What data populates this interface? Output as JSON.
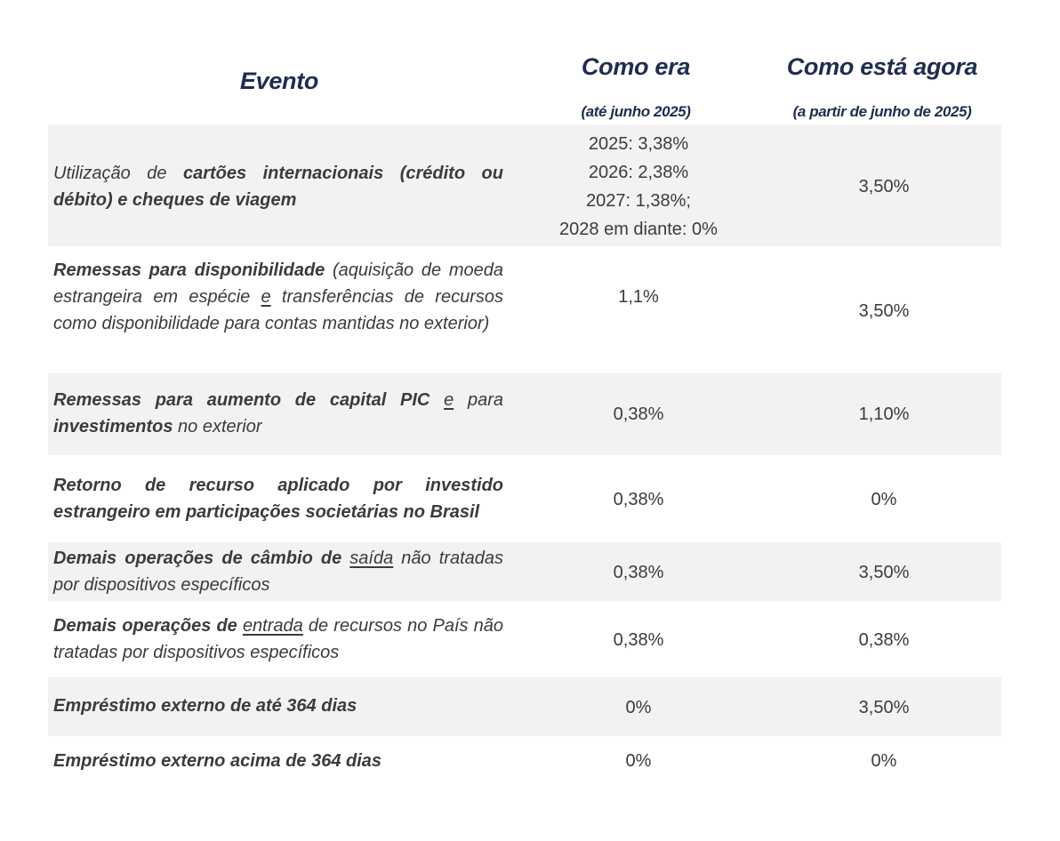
{
  "header": {
    "evento": "Evento",
    "como_era": "Como era",
    "como_era_sub": "(até junho 2025)",
    "como_esta": "Como está agora",
    "como_esta_sub": "(a partir de junho de 2025)"
  },
  "rows": [
    {
      "evento_parts": [
        "Utilização de ",
        "cartões internacionais (crédito ou débito) e cheques de viagem"
      ],
      "como_era": [
        "2025: 3,38%",
        "2026: 2,38%",
        "2027: 1,38%;",
        "2028 em diante: 0%"
      ],
      "como_esta": "3,50%"
    },
    {
      "evento_parts": [
        "Remessas para disponibilidade",
        " (aquisição de moeda estrangeira em espécie ",
        "e",
        " transferências de recursos como disponibilidade para contas mantidas no exterior)"
      ],
      "como_era": "1,1%",
      "como_esta": "3,50%"
    },
    {
      "evento_parts": [
        "Remessas para aumento de capital PIC ",
        "e",
        " para ",
        "investimentos",
        " no exterior"
      ],
      "como_era": "0,38%",
      "como_esta": "1,10%"
    },
    {
      "evento_parts": [
        "Retorno de recurso aplicado por investido estrangeiro em participações societárias no Brasil"
      ],
      "como_era": "0,38%",
      "como_esta": "0%"
    },
    {
      "evento_parts": [
        "Demais operações de câmbio de ",
        "saída",
        " não tratadas por dispositivos específicos"
      ],
      "como_era": "0,38%",
      "como_esta": "3,50%"
    },
    {
      "evento_parts": [
        "Demais operações de ",
        "entrada",
        " de recursos no País não tratadas por dispositivos específicos"
      ],
      "como_era": "0,38%",
      "como_esta": "0,38%"
    },
    {
      "evento_parts": [
        "Empréstimo externo de até 364 dias"
      ],
      "como_era": "0%",
      "como_esta": "3,50%"
    },
    {
      "evento_parts": [
        "Empréstimo externo acima de 364 dias"
      ],
      "como_era": "0%",
      "como_esta": "0%"
    }
  ]
}
